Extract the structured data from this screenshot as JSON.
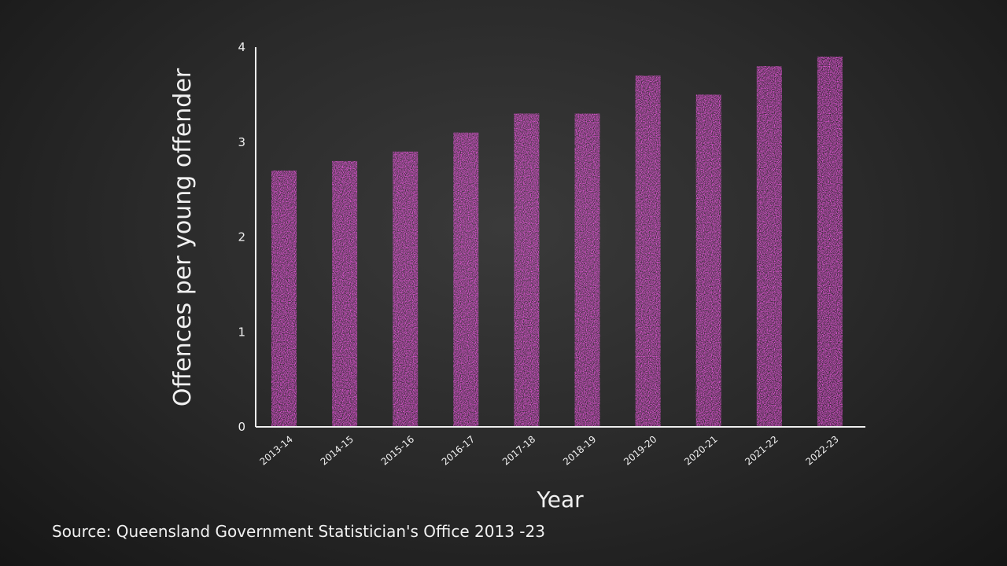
{
  "chart_data": {
    "type": "bar",
    "categories": [
      "2013-14",
      "2014-15",
      "2015-16",
      "2016-17",
      "2017-18",
      "2018-19",
      "2019-20",
      "2020-21",
      "2021-22",
      "2022-23"
    ],
    "values": [
      2.7,
      2.8,
      2.9,
      3.1,
      3.3,
      3.3,
      3.7,
      3.5,
      3.8,
      3.9
    ],
    "xlabel": "Year",
    "ylabel": "Offences per young offender",
    "ylim": [
      0,
      4
    ],
    "yticks": [
      0,
      1,
      2,
      3,
      4
    ],
    "grid": false,
    "bar_color": "#e455d8",
    "background": "chalkboard"
  },
  "source": "Source: Queensland Government Statistician's Office 2013 -23"
}
